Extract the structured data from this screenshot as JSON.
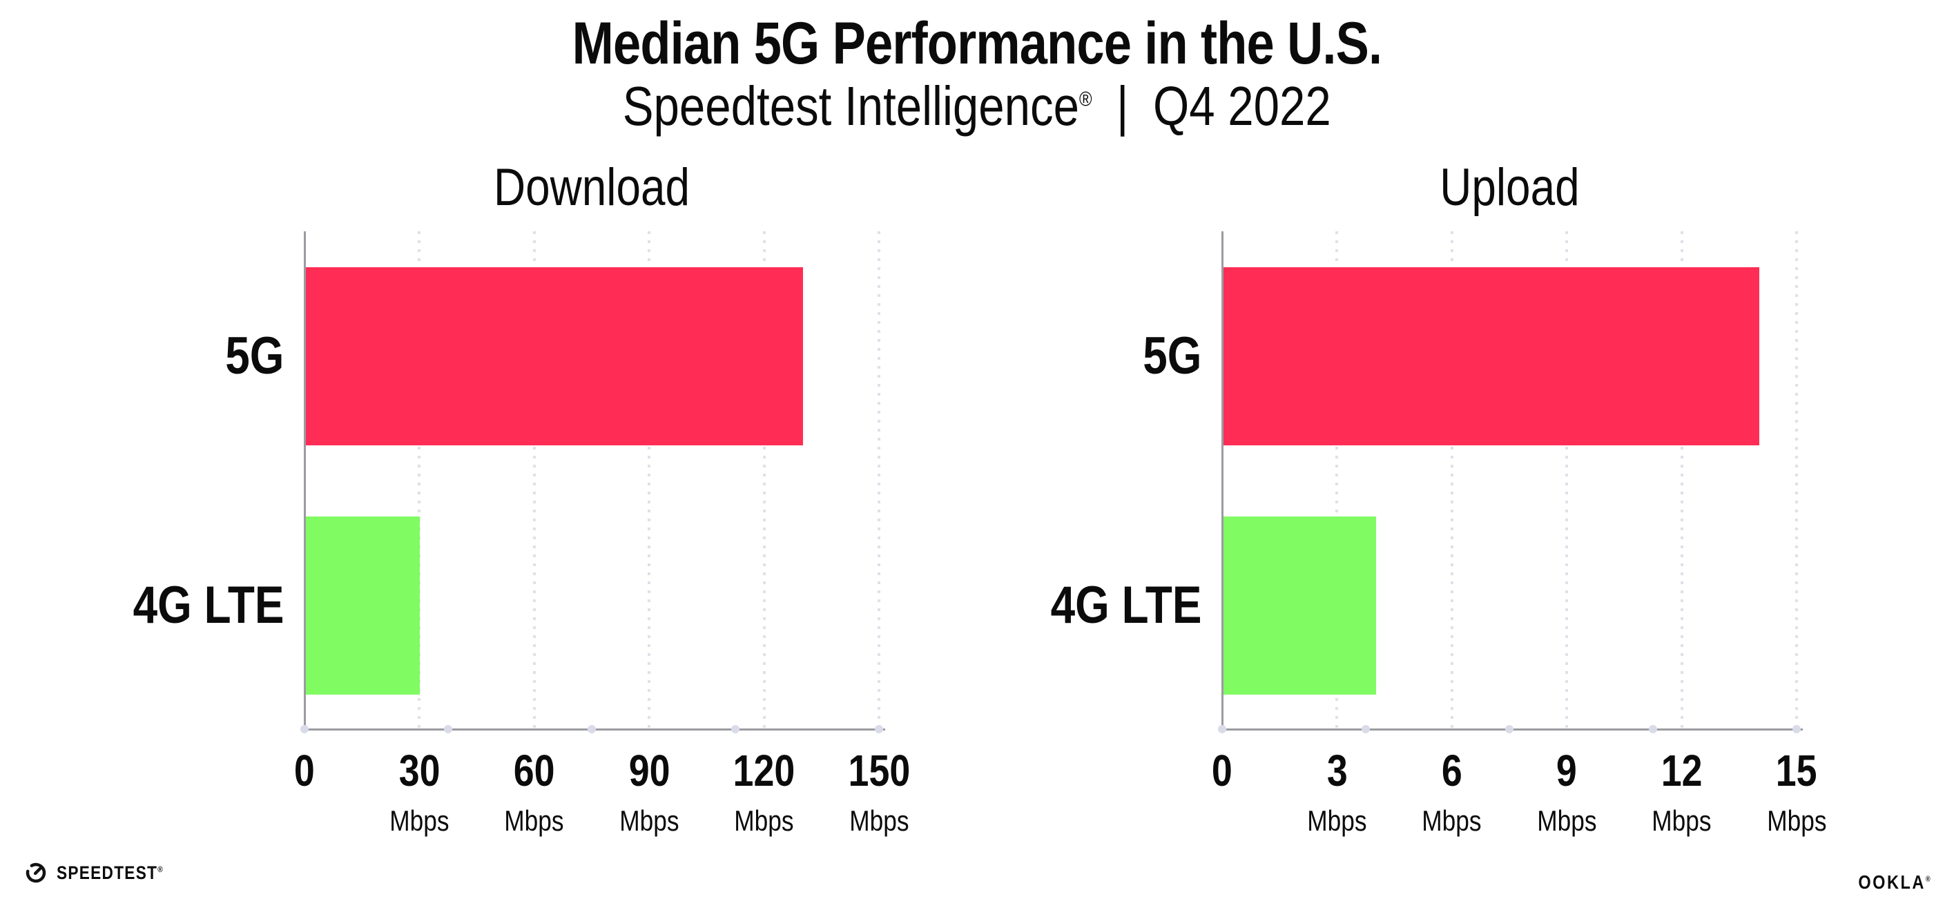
{
  "header": {
    "title": "Median 5G Performance in the U.S.",
    "subtitle_product": "Speedtest Intelligence",
    "subtitle_reg": "®",
    "subtitle_divider": "|",
    "subtitle_period": "Q4 2022"
  },
  "colors": {
    "bar_5g": "#ff2d55",
    "bar_4g": "#80fb62",
    "axis": "#9b9ba1",
    "grid_dot": "#dfe0ea",
    "axis_dot": "#d9dbe8",
    "text": "#0b0b0b"
  },
  "chart_data": [
    {
      "type": "bar",
      "orientation": "horizontal",
      "title": "Download",
      "categories": [
        "5G",
        "4G LTE"
      ],
      "values": [
        130,
        30
      ],
      "unit": "Mbps",
      "xlim": [
        0,
        150
      ],
      "ticks": [
        0,
        30,
        60,
        90,
        120,
        150
      ],
      "tick_unit_label": "Mbps",
      "grid": "dotted-vertical",
      "legend": "none"
    },
    {
      "type": "bar",
      "orientation": "horizontal",
      "title": "Upload",
      "categories": [
        "5G",
        "4G LTE"
      ],
      "values": [
        14,
        4
      ],
      "unit": "Mbps",
      "xlim": [
        0,
        15
      ],
      "ticks": [
        0,
        3,
        6,
        9,
        12,
        15
      ],
      "tick_unit_label": "Mbps",
      "grid": "dotted-vertical",
      "legend": "none"
    }
  ],
  "footer": {
    "speedtest_logo_text": "SPEEDTEST",
    "speedtest_reg": "®",
    "ookla_logo_text": "OOKLA",
    "ookla_reg": "®"
  }
}
